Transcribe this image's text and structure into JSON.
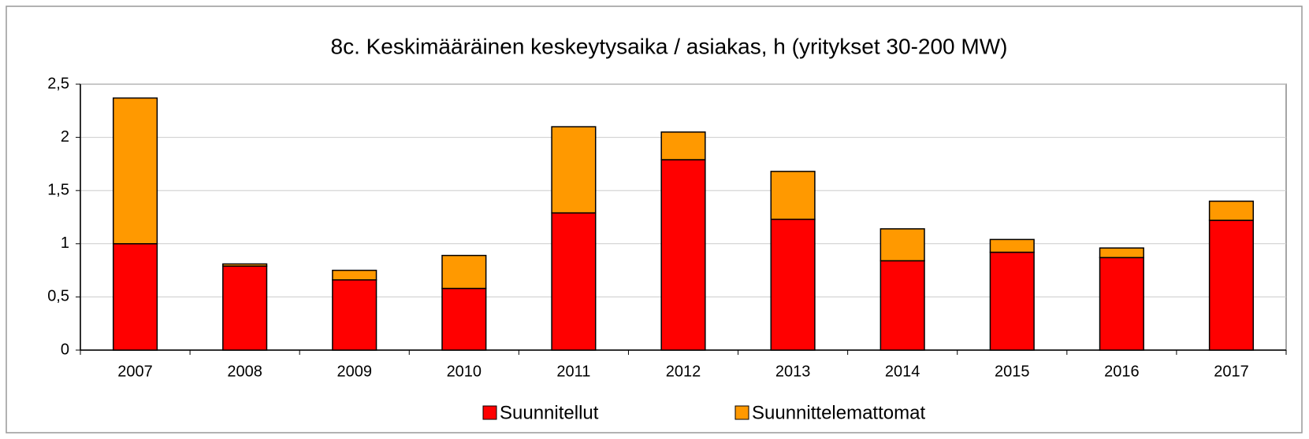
{
  "chart_data": {
    "type": "stacked_bar",
    "title": "8c. Keskimääräinen keskeytysaika / asiakas, h (yritykset 30-200 MW)",
    "categories": [
      "2007",
      "2008",
      "2009",
      "2010",
      "2011",
      "2012",
      "2013",
      "2014",
      "2015",
      "2016",
      "2017"
    ],
    "series": [
      {
        "name": "Suunnitellut",
        "color": "#ff0000",
        "values": [
          1.0,
          0.79,
          0.66,
          0.58,
          1.29,
          1.79,
          1.23,
          0.84,
          0.92,
          0.87,
          1.22
        ]
      },
      {
        "name": "Suunnittelemattomat",
        "color": "#ff9900",
        "values": [
          1.37,
          0.02,
          0.09,
          0.31,
          0.81,
          0.26,
          0.45,
          0.3,
          0.12,
          0.09,
          0.18
        ]
      }
    ],
    "ylim": [
      0,
      2.5
    ],
    "yticks": [
      0,
      {
        "value": 0.5,
        "label": "0,5"
      },
      1,
      {
        "value": 1.5,
        "label": "1,5"
      },
      2,
      {
        "value": 2.5,
        "label": "2,5"
      }
    ],
    "grid": true
  }
}
